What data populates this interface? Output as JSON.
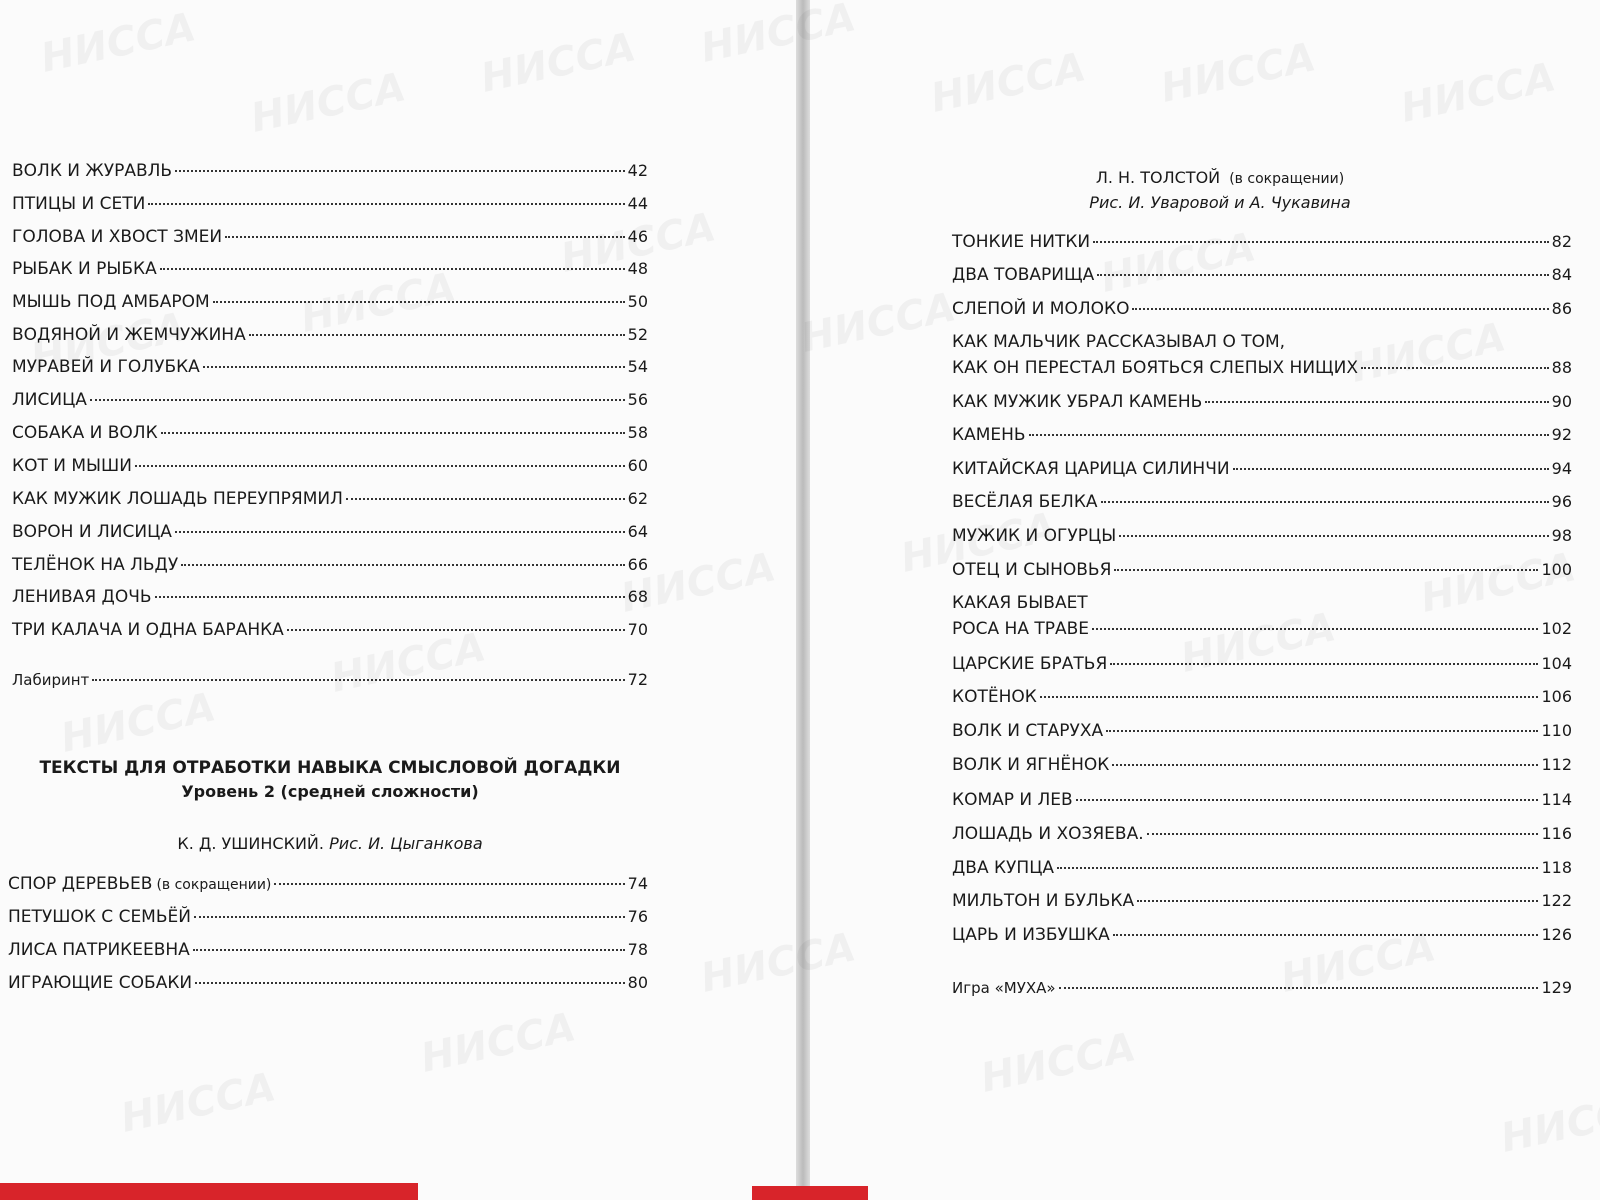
{
  "watermark": "НИССА",
  "left": {
    "entries": [
      {
        "lines": [
          "ВОЛК И ЖУРАВЛЬ"
        ],
        "page": 42
      },
      {
        "lines": [
          "ПТИЦЫ И СЕТИ"
        ],
        "page": 44
      },
      {
        "lines": [
          "ГОЛОВА И ХВОСТ ЗМЕИ"
        ],
        "page": 46
      },
      {
        "lines": [
          "РЫБАК И РЫБКА"
        ],
        "page": 48
      },
      {
        "lines": [
          "МЫШЬ ПОД АМБАРОМ"
        ],
        "page": 50
      },
      {
        "lines": [
          "ВОДЯНОЙ И ЖЕМЧУЖИНА"
        ],
        "page": 52
      },
      {
        "lines": [
          "МУРАВЕЙ И ГОЛУБКА"
        ],
        "page": 54
      },
      {
        "lines": [
          "ЛИСИЦА"
        ],
        "page": 56
      },
      {
        "lines": [
          "СОБАКА И ВОЛК"
        ],
        "page": 58
      },
      {
        "lines": [
          "КОТ И МЫШИ"
        ],
        "page": 60
      },
      {
        "lines": [
          "КАК МУЖИК ЛОШАДЬ ПЕРЕУПРЯМИЛ"
        ],
        "page": 62
      },
      {
        "lines": [
          "ВОРОН И ЛИСИЦА"
        ],
        "page": 64
      },
      {
        "lines": [
          "ТЕЛЁНОК НА ЛЬДУ"
        ],
        "page": 66
      },
      {
        "lines": [
          "ЛЕНИВАЯ ДОЧЬ"
        ],
        "page": 68
      },
      {
        "lines": [
          "ТРИ КАЛАЧА И ОДНА БАРАНКА"
        ],
        "page": 70
      },
      {
        "lines": [
          "Лабиринт"
        ],
        "page": 72
      }
    ],
    "section_title": "ТЕКСТЫ ДЛЯ ОТРАБОТКИ НАВЫКА  СМЫСЛОВОЙ ДОГАДКИ",
    "section_level": "Уровень 2 (средней сложности)",
    "author": "К. Д. УШИНСКИЙ.",
    "illustrator": "Рис. И. Цыганкова",
    "entries2": [
      {
        "lines": [
          "СПОР ДЕРЕВЬЕВ"
        ],
        "note": "(в сокращении)",
        "page": 74
      },
      {
        "lines": [
          "ПЕТУШОК С СЕМЬЁЙ"
        ],
        "page": 76
      },
      {
        "lines": [
          "ЛИСА ПАТРИКЕЕВНА"
        ],
        "page": 78
      },
      {
        "lines": [
          "ИГРАЮЩИЕ СОБАКИ"
        ],
        "page": 80
      }
    ]
  },
  "right": {
    "author": "Л. Н. ТОЛСТОЙ",
    "author_note": "(в сокращении)",
    "illustrators": "Рис. И. Уваровой и А. Чукавина",
    "entries": [
      {
        "lines": [
          "ТОНКИЕ НИТКИ"
        ],
        "page": 82
      },
      {
        "lines": [
          "ДВА ТОВАРИЩА"
        ],
        "page": 84
      },
      {
        "lines": [
          "СЛЕПОЙ И МОЛОКО"
        ],
        "page": 86
      },
      {
        "lines": [
          "КАК МАЛЬЧИК РАССКАЗЫВАЛ О ТОМ,",
          "КАК ОН ПЕРЕСТАЛ БОЯТЬСЯ СЛЕПЫХ НИЩИХ"
        ],
        "page": 88
      },
      {
        "lines": [
          "КАК МУЖИК УБРАЛ КАМЕНЬ"
        ],
        "page": 90
      },
      {
        "lines": [
          "КАМЕНЬ"
        ],
        "page": 92
      },
      {
        "lines": [
          "КИТАЙСКАЯ ЦАРИЦА СИЛИНЧИ"
        ],
        "page": 94
      },
      {
        "lines": [
          "ВЕСЁЛАЯ БЕЛКА"
        ],
        "page": 96
      },
      {
        "lines": [
          "МУЖИК И ОГУРЦЫ"
        ],
        "page": 98
      },
      {
        "lines": [
          "ОТЕЦ И СЫНОВЬЯ"
        ],
        "page": 100
      },
      {
        "lines": [
          "КАКАЯ БЫВАЕТ",
          "РОСА НА ТРАВЕ"
        ],
        "page": 102
      },
      {
        "lines": [
          "ЦАРСКИЕ БРАТЬЯ"
        ],
        "page": 104
      },
      {
        "lines": [
          "КОТЁНОК"
        ],
        "page": 106
      },
      {
        "lines": [
          "ВОЛК И СТАРУХА"
        ],
        "page": 110
      },
      {
        "lines": [
          "ВОЛК И ЯГНЁНОК"
        ],
        "page": 112
      },
      {
        "lines": [
          "КОМАР И ЛЕВ"
        ],
        "page": 114
      },
      {
        "lines": [
          "ЛОШАДЬ И ХОЗЯЕВА."
        ],
        "page": 116
      },
      {
        "lines": [
          "ДВА КУПЦА"
        ],
        "page": 118
      },
      {
        "lines": [
          "МИЛЬТОН И БУЛЬКА"
        ],
        "page": 122
      },
      {
        "lines": [
          "ЦАРЬ И ИЗБУШКА"
        ],
        "page": 126
      },
      {
        "lines": [
          "Игра «МУХА»"
        ],
        "page": 129
      }
    ]
  }
}
